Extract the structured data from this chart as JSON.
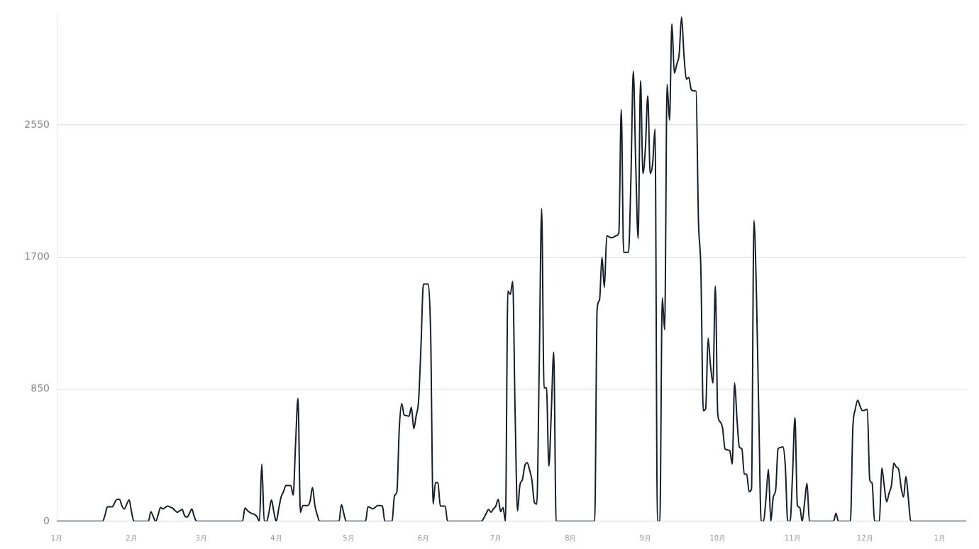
{
  "chart_data": {
    "type": "line",
    "grid": "y",
    "ylim": [
      0,
      3270
    ],
    "yticks": [
      0,
      850,
      1700,
      2550
    ],
    "categories": [
      "1月",
      null,
      null,
      null,
      null,
      null,
      null,
      null,
      null,
      null,
      null,
      null,
      null,
      null,
      null,
      null,
      null,
      null,
      null,
      null,
      null,
      null,
      null,
      null,
      null,
      null,
      null,
      null,
      null,
      null,
      null,
      "2月",
      null,
      null,
      null,
      null,
      null,
      null,
      null,
      null,
      null,
      null,
      null,
      null,
      null,
      null,
      null,
      null,
      null,
      null,
      null,
      null,
      null,
      null,
      null,
      null,
      null,
      null,
      null,
      null,
      "3月",
      null,
      null,
      null,
      null,
      null,
      null,
      null,
      null,
      null,
      null,
      null,
      null,
      null,
      null,
      null,
      null,
      null,
      null,
      null,
      null,
      null,
      null,
      null,
      null,
      null,
      null,
      null,
      null,
      null,
      null,
      "4月",
      null,
      null,
      null,
      null,
      null,
      null,
      null,
      null,
      null,
      null,
      null,
      null,
      null,
      null,
      null,
      null,
      null,
      null,
      null,
      null,
      null,
      null,
      null,
      null,
      null,
      null,
      null,
      null,
      null,
      "5月",
      null,
      null,
      null,
      null,
      null,
      null,
      null,
      null,
      null,
      null,
      null,
      null,
      null,
      null,
      null,
      null,
      null,
      null,
      null,
      null,
      null,
      null,
      null,
      null,
      null,
      null,
      null,
      null,
      null,
      null,
      "6月",
      null,
      null,
      null,
      null,
      null,
      null,
      null,
      null,
      null,
      null,
      null,
      null,
      null,
      null,
      null,
      null,
      null,
      null,
      null,
      null,
      null,
      null,
      null,
      null,
      null,
      null,
      null,
      null,
      null,
      "7月",
      null,
      null,
      null,
      null,
      null,
      null,
      null,
      null,
      null,
      null,
      null,
      null,
      null,
      null,
      null,
      null,
      null,
      null,
      null,
      null,
      null,
      null,
      null,
      null,
      null,
      null,
      null,
      null,
      null,
      null,
      "8月",
      null,
      null,
      null,
      null,
      null,
      null,
      null,
      null,
      null,
      null,
      null,
      null,
      null,
      null,
      null,
      null,
      null,
      null,
      null,
      null,
      null,
      null,
      null,
      null,
      null,
      null,
      null,
      null,
      null,
      null,
      "9月",
      null,
      null,
      null,
      null,
      null,
      null,
      null,
      null,
      null,
      null,
      null,
      null,
      null,
      null,
      null,
      null,
      null,
      null,
      null,
      null,
      null,
      null,
      null,
      null,
      null,
      null,
      null,
      null,
      null,
      "10月",
      null,
      null,
      null,
      null,
      null,
      null,
      null,
      null,
      null,
      null,
      null,
      null,
      null,
      null,
      null,
      null,
      null,
      null,
      null,
      null,
      null,
      null,
      null,
      null,
      null,
      null,
      null,
      null,
      null,
      null,
      "11月",
      null,
      null,
      null,
      null,
      null,
      null,
      null,
      null,
      null,
      null,
      null,
      null,
      null,
      null,
      null,
      null,
      null,
      null,
      null,
      null,
      null,
      null,
      null,
      null,
      null,
      null,
      null,
      null,
      null,
      "12月",
      null,
      null,
      null,
      null,
      null,
      null,
      null,
      null,
      null,
      null,
      null,
      null,
      null,
      null,
      null,
      null,
      null,
      null,
      null,
      null,
      null,
      null,
      null,
      null,
      null,
      null,
      null,
      null,
      null,
      null,
      "1月",
      null,
      null,
      null,
      null,
      null,
      null,
      null,
      null,
      null,
      null,
      null
    ],
    "series": [
      {
        "color": "#15202b",
        "values": [
          0,
          0,
          0,
          0,
          0,
          0,
          0,
          0,
          0,
          0,
          0,
          0,
          0,
          0,
          0,
          0,
          0,
          0,
          0,
          0,
          40,
          93,
          93,
          93,
          120,
          142,
          142,
          100,
          80,
          110,
          138,
          60,
          0,
          0,
          0,
          0,
          0,
          0,
          0,
          62,
          30,
          0,
          40,
          89,
          80,
          90,
          98,
          92,
          85,
          70,
          58,
          68,
          76,
          36,
          27,
          50,
          80,
          30,
          0,
          0,
          0,
          0,
          0,
          0,
          0,
          0,
          0,
          0,
          0,
          0,
          0,
          0,
          0,
          0,
          0,
          0,
          0,
          0,
          85,
          70,
          58,
          50,
          44,
          30,
          0,
          369,
          0,
          0,
          60,
          138,
          60,
          0,
          80,
          156,
          191,
          231,
          231,
          231,
          169,
          500,
          792,
          58,
          102,
          102,
          102,
          129,
          218,
          102,
          40,
          0,
          0,
          0,
          0,
          0,
          0,
          0,
          0,
          0,
          107,
          50,
          0,
          0,
          0,
          0,
          0,
          0,
          0,
          0,
          0,
          93,
          88,
          80,
          90,
          102,
          102,
          98,
          0,
          0,
          0,
          0,
          165,
          191,
          601,
          757,
          685,
          680,
          676,
          734,
          596,
          680,
          779,
          1135,
          1526,
          1526,
          1526,
          1200,
          111,
          249,
          249,
          98,
          98,
          98,
          0,
          0,
          0,
          0,
          0,
          0,
          0,
          0,
          0,
          0,
          0,
          0,
          0,
          0,
          0,
          20,
          50,
          76,
          58,
          80,
          98,
          142,
          62,
          89,
          0,
          1482,
          1460,
          1544,
          700,
          67,
          236,
          267,
          356,
          378,
          330,
          262,
          120,
          111,
          1000,
          2011,
          859,
          859,
          356,
          700,
          1090,
          0,
          0,
          0,
          0,
          0,
          0,
          0,
          0,
          0,
          0,
          0,
          0,
          0,
          0,
          0,
          0,
          0,
          1366,
          1424,
          1700,
          1504,
          1838,
          1830,
          1824,
          1830,
          1838,
          1856,
          2648,
          1731,
          1731,
          1731,
          2200,
          2897,
          2300,
          1820,
          2835,
          2238,
          2400,
          2737,
          2238,
          2300,
          2523,
          0,
          0,
          1437,
          1233,
          2812,
          2581,
          3200,
          2884,
          2940,
          3004,
          3244,
          3000,
          2844,
          2857,
          2777,
          2770,
          2768,
          1936,
          1624,
          712,
          725,
          1179,
          1000,
          890,
          1513,
          690,
          640,
          600,
          467,
          460,
          454,
          369,
          890,
          650,
          476,
          467,
          303,
          303,
          191,
          209,
          1936,
          1491,
          700,
          0,
          0,
          150,
          334,
          0,
          156,
          200,
          467,
          475,
          480,
          356,
          0,
          0,
          300,
          667,
          102,
          89,
          0,
          120,
          245,
          0,
          0,
          0,
          0,
          0,
          0,
          0,
          0,
          0,
          0,
          0,
          53,
          0,
          0,
          0,
          0,
          0,
          0,
          601,
          720,
          779,
          740,
          712,
          715,
          721,
          267,
          245,
          0,
          0,
          0,
          343,
          230,
          125,
          180,
          231,
          374,
          350,
          334,
          220,
          156,
          289,
          150,
          0,
          0,
          0,
          0,
          0,
          0,
          0,
          0,
          0,
          0,
          0,
          0,
          0,
          0,
          0,
          0,
          0,
          0,
          0,
          0,
          0,
          0,
          0,
          0
        ]
      }
    ]
  }
}
